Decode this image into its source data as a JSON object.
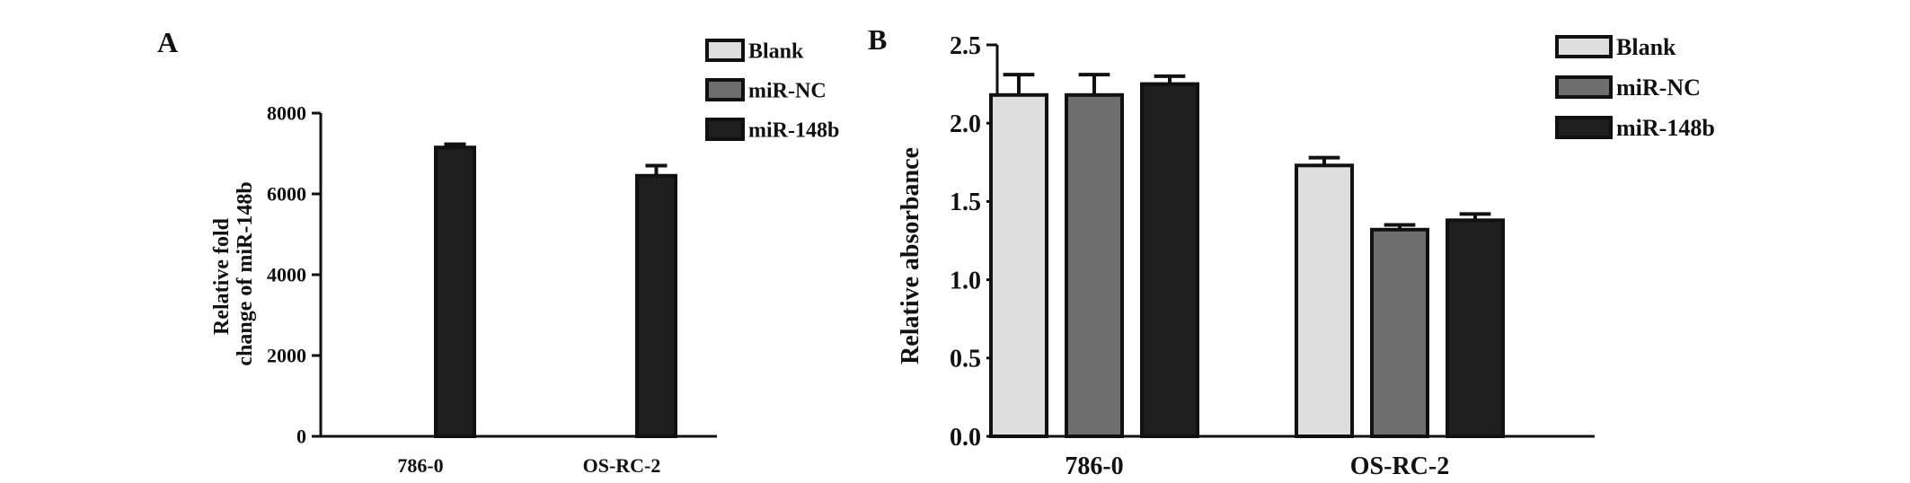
{
  "chart_data": [
    {
      "panel": "A",
      "type": "bar",
      "categories": [
        "786-0",
        "OS-RC-2"
      ],
      "series": [
        {
          "name": "Blank",
          "color": "#dedede",
          "values": [
            0,
            0
          ],
          "errors": [
            0,
            0
          ]
        },
        {
          "name": "miR-NC",
          "color": "#6e6e6e",
          "values": [
            0,
            0
          ],
          "errors": [
            0,
            0
          ]
        },
        {
          "name": "miR-148b",
          "color": "#1e1e1e",
          "values": [
            7150,
            6450
          ],
          "errors": [
            80,
            250
          ]
        }
      ],
      "ylabel_lines": [
        "Relative fold",
        "change of miR-148b"
      ],
      "ylim": [
        0,
        8000
      ],
      "yticks": [
        0,
        2000,
        4000,
        6000,
        8000
      ],
      "ytick_labels": [
        "0",
        "2000",
        "4000",
        "6000",
        "8000"
      ],
      "legend_position": "top-right"
    },
    {
      "panel": "B",
      "type": "bar",
      "categories": [
        "786-0",
        "OS-RC-2"
      ],
      "series": [
        {
          "name": "Blank",
          "color": "#dedede",
          "values": [
            2.18,
            1.73
          ],
          "errors": [
            0.13,
            0.05
          ]
        },
        {
          "name": "miR-NC",
          "color": "#6e6e6e",
          "values": [
            2.18,
            1.32
          ],
          "errors": [
            0.13,
            0.03
          ]
        },
        {
          "name": "miR-148b",
          "color": "#1e1e1e",
          "values": [
            2.25,
            1.38
          ],
          "errors": [
            0.05,
            0.04
          ]
        }
      ],
      "ylabel_lines": [
        "Relative absorbance"
      ],
      "ylim": [
        0,
        2.5
      ],
      "yticks": [
        0,
        0.5,
        1.0,
        1.5,
        2.0,
        2.5
      ],
      "ytick_labels": [
        "0.0",
        "0.5",
        "1.0",
        "1.5",
        "2.0",
        "2.5"
      ],
      "legend_position": "top-right"
    }
  ]
}
